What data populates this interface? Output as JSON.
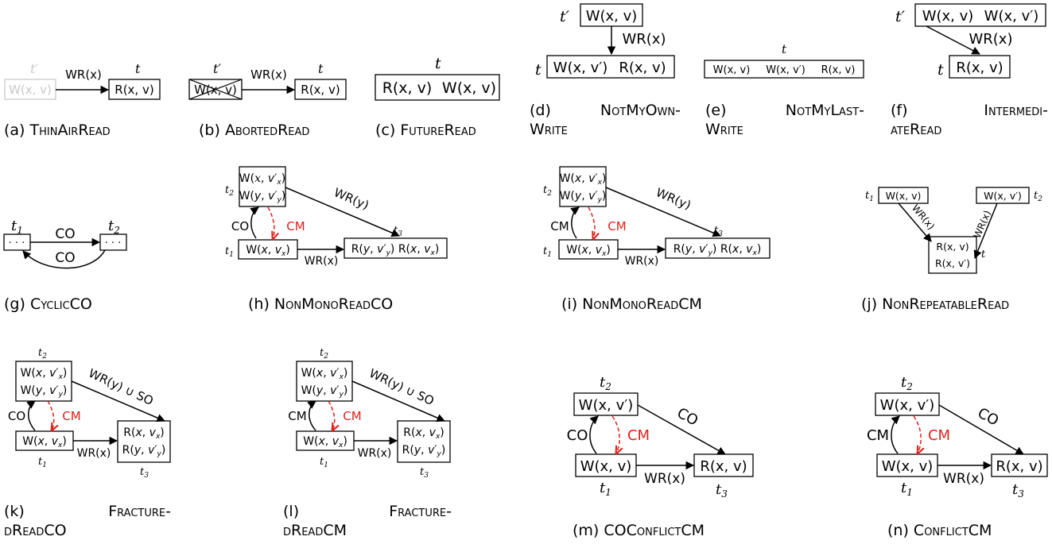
{
  "captions": {
    "a": {
      "tag": "(a)",
      "name": "ThinAirRead"
    },
    "b": {
      "tag": "(b)",
      "name": "AbortedRead"
    },
    "c": {
      "tag": "(c)",
      "name": "FutureRead"
    },
    "d": {
      "tag": "(d)",
      "name1": "NotMyOwn-",
      "name2": "Write"
    },
    "e": {
      "tag": "(e)",
      "name1": "NotMyLast-",
      "name2": "Write"
    },
    "f": {
      "tag": "(f)",
      "name1": "Intermedi-",
      "name2": "ateRead"
    },
    "g": {
      "tag": "(g)",
      "name": "CyclicCO"
    },
    "h": {
      "tag": "(h)",
      "name": "NonMonoReadCO"
    },
    "i": {
      "tag": "(i)",
      "name": "NonMonoReadCM"
    },
    "j": {
      "tag": "(j)",
      "name": "NonRepeatableRead"
    },
    "k": {
      "tag": "(k)",
      "name1": "Fracture-",
      "name2": "dReadCO"
    },
    "l": {
      "tag": "(l)",
      "name1": "Fracture-",
      "name2": "dReadCM"
    },
    "m": {
      "tag": "(m)",
      "name": "COConflictCM"
    },
    "n": {
      "tag": "(n)",
      "name": "ConflictCM"
    }
  },
  "labels": {
    "wr_x": "WR(x)",
    "wr_y": "WR(y)",
    "wr_y_so": "WR(y) ∪ SO",
    "co": "CO",
    "cm": "CM",
    "dots": "· · ·",
    "t": "t",
    "t_prime": "t′",
    "t1": "t1",
    "t2": "t2",
    "t3": "t3",
    "w_xv": "W(x, v)",
    "w_xv_prime": "W(x, v′)",
    "r_xv": "R(x, v)",
    "r_xv_prime": "R(x, v′)",
    "w_x_vx": "W(x, vx)",
    "w_x_vx_prime": "W(x, v′x)",
    "w_y_vy_prime": "W(y, v′y)",
    "r_x_vx": "R(x, vx)",
    "r_y_vy_prime": "R(y, v′y)"
  },
  "colors": {
    "ink": "#000000",
    "faded": "#c8c8c8",
    "cm": "#e0201b"
  }
}
